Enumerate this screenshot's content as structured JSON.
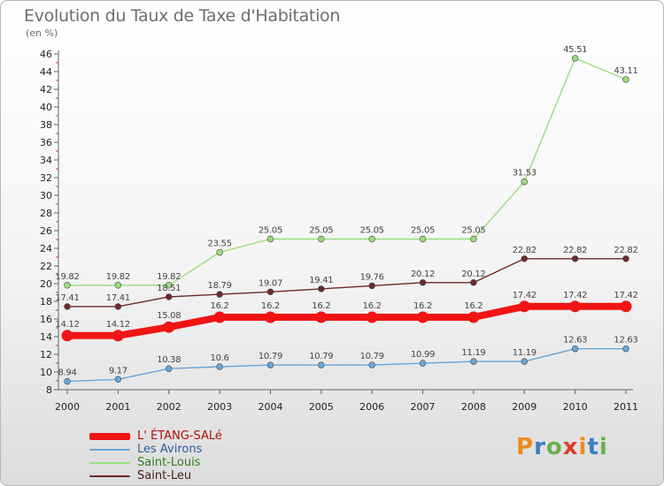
{
  "title": "Evolution du Taux de Taxe d'Habitation",
  "subtitle": "(en %)",
  "logo": {
    "letters": [
      "P",
      "r",
      "o",
      "x",
      "i",
      "t",
      "i"
    ],
    "colors": [
      "#f08a1e",
      "#3b7dc4",
      "#6ab04c",
      "#e23b2e",
      "#f08a1e",
      "#3b7dc4",
      "#6ab04c"
    ]
  },
  "chart_data": {
    "type": "line",
    "x": [
      "2000",
      "2001",
      "2002",
      "2003",
      "2004",
      "2005",
      "2006",
      "2007",
      "2008",
      "2009",
      "2010",
      "2011"
    ],
    "ylim": [
      8,
      46
    ],
    "yticks": [
      8,
      10,
      12,
      14,
      16,
      18,
      20,
      22,
      24,
      26,
      28,
      30,
      32,
      34,
      36,
      38,
      40,
      42,
      44,
      46
    ],
    "grid": false,
    "legend_position": "bottom-left",
    "series": [
      {
        "name": "Saint-Leu",
        "color": "#6b2a2a",
        "values": [
          17.41,
          17.41,
          18.51,
          18.79,
          19.07,
          19.41,
          19.76,
          20.12,
          20.12,
          22.82,
          22.82,
          22.82
        ],
        "labels": [
          "17.41",
          "17.41",
          "18.51",
          "18.79",
          "19.07",
          "19.41",
          "19.76",
          "20.12",
          "20.12",
          "22.82",
          "22.82",
          "22.82"
        ]
      },
      {
        "name": "Saint-Louis",
        "color": "#9bdc7c",
        "values": [
          19.82,
          19.82,
          19.82,
          23.55,
          25.05,
          25.05,
          25.05,
          25.05,
          25.05,
          31.53,
          45.51,
          43.11
        ],
        "labels": [
          "19.82",
          "19.82",
          "19.82",
          "23.55",
          "25.05",
          "25.05",
          "25.05",
          "25.05",
          "25.05",
          "31.53",
          "45.51",
          "43.11"
        ]
      },
      {
        "name": "Les Avirons",
        "color": "#6aa6d8",
        "values": [
          8.94,
          9.17,
          10.38,
          10.6,
          10.79,
          10.79,
          10.79,
          10.99,
          11.19,
          11.19,
          12.63,
          12.63
        ],
        "labels": [
          "8.94",
          "9.17",
          "10.38",
          "10.6",
          "10.79",
          "10.79",
          "10.79",
          "10.99",
          "11.19",
          "11.19",
          "12.63",
          "12.63"
        ]
      },
      {
        "name": "L' ÉTANG-SALé",
        "color": "#f21414",
        "values": [
          14.12,
          14.12,
          15.08,
          16.2,
          16.2,
          16.2,
          16.2,
          16.2,
          16.2,
          17.42,
          17.42,
          17.42
        ],
        "labels": [
          "14.12",
          "14.12",
          "15.08",
          "16.2",
          "16.2",
          "16.2",
          "16.2",
          "16.2",
          "16.2",
          "17.42",
          "17.42",
          "17.42"
        ]
      }
    ],
    "legend": [
      {
        "name": "L' ÉTANG-SALé",
        "color": "#f21414",
        "thickness": 8
      },
      {
        "name": "Les Avirons",
        "color": "#6aa6d8",
        "thickness": 2
      },
      {
        "name": "Saint-Louis",
        "color": "#9bdc7c",
        "thickness": 2
      },
      {
        "name": "Saint-Leu",
        "color": "#6b2a2a",
        "thickness": 2
      }
    ]
  }
}
